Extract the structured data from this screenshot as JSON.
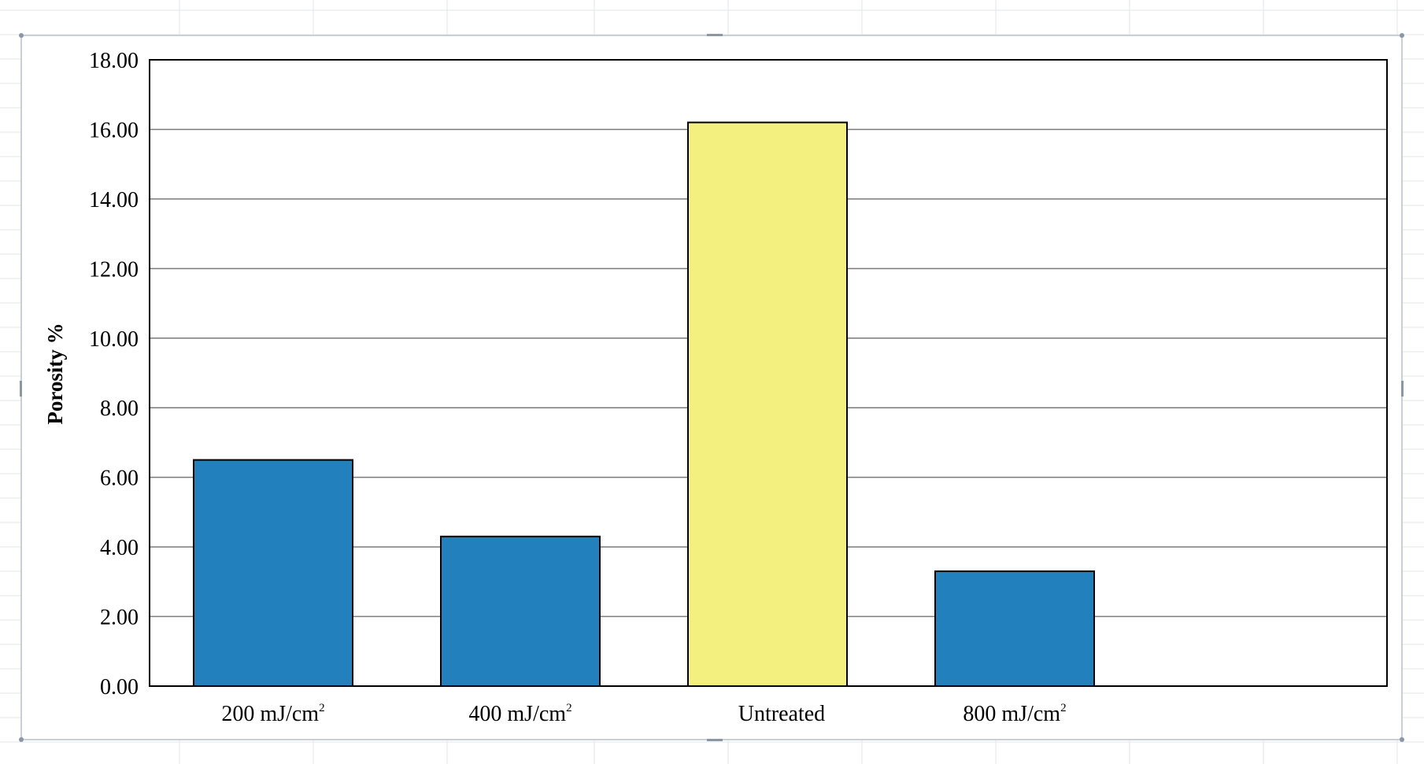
{
  "chart_data": {
    "type": "bar",
    "title": "",
    "xlabel": "",
    "ylabel": "Porosity %",
    "ylim": [
      0,
      18
    ],
    "yticks": [
      "0.00",
      "2.00",
      "4.00",
      "6.00",
      "8.00",
      "10.00",
      "12.00",
      "14.00",
      "16.00",
      "18.00"
    ],
    "ytick_values": [
      0,
      2,
      4,
      6,
      8,
      10,
      12,
      14,
      16,
      18
    ],
    "categories": [
      {
        "base": "200 mJ/cm",
        "sup": "2"
      },
      {
        "base": "400 mJ/cm",
        "sup": "2"
      },
      {
        "base": "Untreated",
        "sup": ""
      },
      {
        "base": "800 mJ/cm",
        "sup": "2"
      }
    ],
    "values": [
      6.5,
      4.3,
      16.2,
      3.3
    ],
    "bar_colors": [
      "#2280bd",
      "#2280bd",
      "#f3f07f",
      "#2280bd"
    ],
    "grid": true,
    "legend": "none"
  }
}
